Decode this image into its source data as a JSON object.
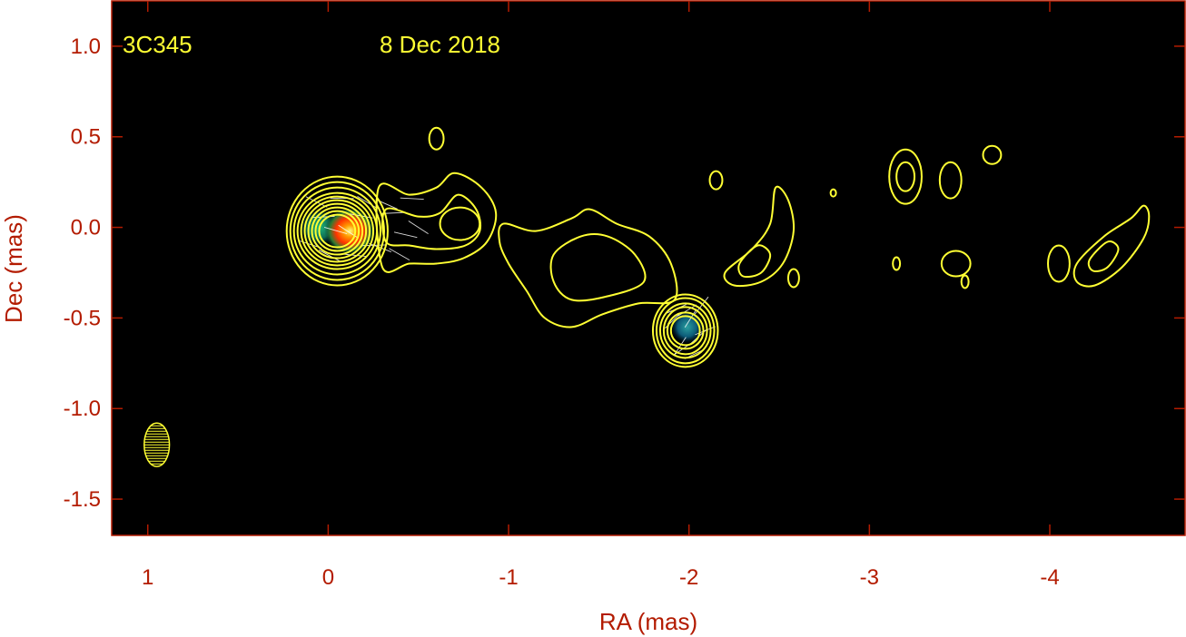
{
  "chart_data": {
    "type": "contour-image",
    "xlabel": "RA (mas)",
    "ylabel": "Dec (mas)",
    "xlim": [
      1.2,
      -4.75
    ],
    "ylim": [
      -1.7,
      1.25
    ],
    "xticks": [
      1,
      0,
      -1,
      -2,
      -3,
      -4
    ],
    "xtick_labels": [
      "1",
      "0",
      "-1",
      "-2",
      "-3",
      "-4"
    ],
    "yticks": [
      1.0,
      0.5,
      0.0,
      -0.5,
      -1.0,
      -1.5
    ],
    "ytick_labels": [
      "1.0",
      "0.5",
      "0.0",
      "-0.5",
      "-1.0",
      "-1.5"
    ],
    "annotations": {
      "source": "3C345",
      "date": "8 Dec 2018"
    },
    "colors": {
      "background": "#000000",
      "frame": "#b31b00",
      "contour": "#ffff33",
      "text": "#ffff33"
    },
    "beam": {
      "ra": 0.95,
      "dec": -1.2,
      "major": 0.24,
      "minor": 0.14,
      "pa_deg": 0
    },
    "contour_groups": [
      {
        "name": "core",
        "ra": -0.05,
        "dec": -0.02,
        "levels": [
          [
            0.28,
            0.3
          ],
          [
            0.26,
            0.27
          ],
          [
            0.24,
            0.24
          ],
          [
            0.22,
            0.21
          ],
          [
            0.2,
            0.19
          ],
          [
            0.18,
            0.17
          ],
          [
            0.16,
            0.15
          ],
          [
            0.14,
            0.13
          ],
          [
            0.12,
            0.11
          ],
          [
            0.1,
            0.09
          ]
        ]
      },
      {
        "name": "knot-C1",
        "ra": -0.73,
        "dec": 0.02,
        "levels": [
          [
            0.11,
            0.09
          ]
        ]
      },
      {
        "name": "knot-C2",
        "ra": -1.98,
        "dec": -0.57,
        "levels": [
          [
            0.18,
            0.2
          ],
          [
            0.16,
            0.18
          ],
          [
            0.14,
            0.15
          ],
          [
            0.12,
            0.13
          ],
          [
            0.1,
            0.1
          ],
          [
            0.08,
            0.08
          ]
        ]
      },
      {
        "name": "blob-a",
        "ra": -0.6,
        "dec": 0.49,
        "levels": [
          [
            0.04,
            0.06
          ]
        ]
      },
      {
        "name": "blob-b",
        "ra": -2.15,
        "dec": 0.26,
        "levels": [
          [
            0.035,
            0.05
          ]
        ]
      },
      {
        "name": "blob-c",
        "ra": -2.8,
        "dec": 0.19,
        "levels": [
          [
            0.015,
            0.02
          ]
        ]
      },
      {
        "name": "blob-d",
        "ra": -3.2,
        "dec": 0.28,
        "levels": [
          [
            0.09,
            0.15
          ],
          [
            0.05,
            0.08
          ]
        ]
      },
      {
        "name": "blob-e",
        "ra": -3.45,
        "dec": 0.26,
        "levels": [
          [
            0.06,
            0.1
          ]
        ]
      },
      {
        "name": "blob-f",
        "ra": -3.68,
        "dec": 0.4,
        "levels": [
          [
            0.05,
            0.05
          ]
        ]
      },
      {
        "name": "blob-g",
        "ra": -3.15,
        "dec": -0.2,
        "levels": [
          [
            0.02,
            0.035
          ]
        ]
      },
      {
        "name": "blob-h",
        "ra": -3.48,
        "dec": -0.2,
        "levels": [
          [
            0.08,
            0.07
          ]
        ]
      },
      {
        "name": "blob-i",
        "ra": -3.53,
        "dec": -0.3,
        "levels": [
          [
            0.02,
            0.035
          ]
        ]
      },
      {
        "name": "blob-j",
        "ra": -2.58,
        "dec": -0.28,
        "levels": [
          [
            0.03,
            0.05
          ]
        ]
      },
      {
        "name": "blob-k",
        "ra": -4.05,
        "dec": -0.2,
        "levels": [
          [
            0.06,
            0.1
          ]
        ]
      }
    ],
    "contour_paths": [
      {
        "name": "jet-outer",
        "points": [
          [
            -0.28,
            0.22
          ],
          [
            -0.45,
            0.18
          ],
          [
            -0.6,
            0.22
          ],
          [
            -0.7,
            0.3
          ],
          [
            -0.85,
            0.22
          ],
          [
            -0.93,
            0.08
          ],
          [
            -0.88,
            -0.08
          ],
          [
            -0.75,
            -0.17
          ],
          [
            -0.6,
            -0.2
          ],
          [
            -0.45,
            -0.2
          ],
          [
            -0.3,
            -0.22
          ]
        ]
      },
      {
        "name": "jet-inner",
        "points": [
          [
            -0.32,
            0.1
          ],
          [
            -0.5,
            0.06
          ],
          [
            -0.62,
            0.08
          ],
          [
            -0.72,
            0.18
          ],
          [
            -0.82,
            0.1
          ],
          [
            -0.84,
            -0.02
          ],
          [
            -0.76,
            -0.1
          ],
          [
            -0.6,
            -0.12
          ],
          [
            -0.45,
            -0.1
          ],
          [
            -0.32,
            -0.08
          ]
        ]
      },
      {
        "name": "mid-outer",
        "points": [
          [
            -0.97,
            0.02
          ],
          [
            -1.15,
            -0.02
          ],
          [
            -1.35,
            0.05
          ],
          [
            -1.45,
            0.1
          ],
          [
            -1.6,
            0.02
          ],
          [
            -1.78,
            -0.05
          ],
          [
            -1.9,
            -0.2
          ],
          [
            -1.92,
            -0.4
          ],
          [
            -1.72,
            -0.42
          ],
          [
            -1.52,
            -0.48
          ],
          [
            -1.35,
            -0.55
          ],
          [
            -1.2,
            -0.5
          ],
          [
            -1.1,
            -0.35
          ],
          [
            -1.0,
            -0.2
          ],
          [
            -0.95,
            -0.08
          ]
        ]
      },
      {
        "name": "mid-inner",
        "points": [
          [
            -1.25,
            -0.15
          ],
          [
            -1.4,
            -0.05
          ],
          [
            -1.55,
            -0.05
          ],
          [
            -1.7,
            -0.15
          ],
          [
            -1.75,
            -0.3
          ],
          [
            -1.55,
            -0.38
          ],
          [
            -1.35,
            -0.4
          ],
          [
            -1.25,
            -0.3
          ]
        ]
      },
      {
        "name": "arc-right",
        "points": [
          [
            -2.2,
            -0.25
          ],
          [
            -2.35,
            -0.12
          ],
          [
            -2.45,
            0.02
          ],
          [
            -2.48,
            0.22
          ],
          [
            -2.55,
            0.15
          ],
          [
            -2.58,
            -0.02
          ],
          [
            -2.52,
            -0.2
          ],
          [
            -2.4,
            -0.3
          ],
          [
            -2.25,
            -0.32
          ]
        ]
      },
      {
        "name": "arc-right-inner",
        "points": [
          [
            -2.28,
            -0.2
          ],
          [
            -2.38,
            -0.1
          ],
          [
            -2.45,
            -0.15
          ],
          [
            -2.4,
            -0.25
          ],
          [
            -2.3,
            -0.27
          ]
        ]
      },
      {
        "name": "tail-outer",
        "points": [
          [
            -4.15,
            -0.2
          ],
          [
            -4.3,
            -0.05
          ],
          [
            -4.45,
            0.05
          ],
          [
            -4.52,
            0.12
          ],
          [
            -4.55,
            0.06
          ],
          [
            -4.52,
            -0.06
          ],
          [
            -4.4,
            -0.22
          ],
          [
            -4.25,
            -0.32
          ],
          [
            -4.15,
            -0.3
          ]
        ]
      },
      {
        "name": "tail-inner",
        "points": [
          [
            -4.22,
            -0.18
          ],
          [
            -4.32,
            -0.08
          ],
          [
            -4.38,
            -0.12
          ],
          [
            -4.32,
            -0.22
          ],
          [
            -4.24,
            -0.24
          ]
        ]
      }
    ],
    "intensity_peaks": [
      {
        "name": "core-peak",
        "ra": -0.12,
        "dec": -0.02
      },
      {
        "name": "core-shoulder",
        "ra": 0.05,
        "dec": 0.0
      },
      {
        "name": "c2-peak",
        "ra": -1.99,
        "dec": -0.55
      }
    ]
  }
}
